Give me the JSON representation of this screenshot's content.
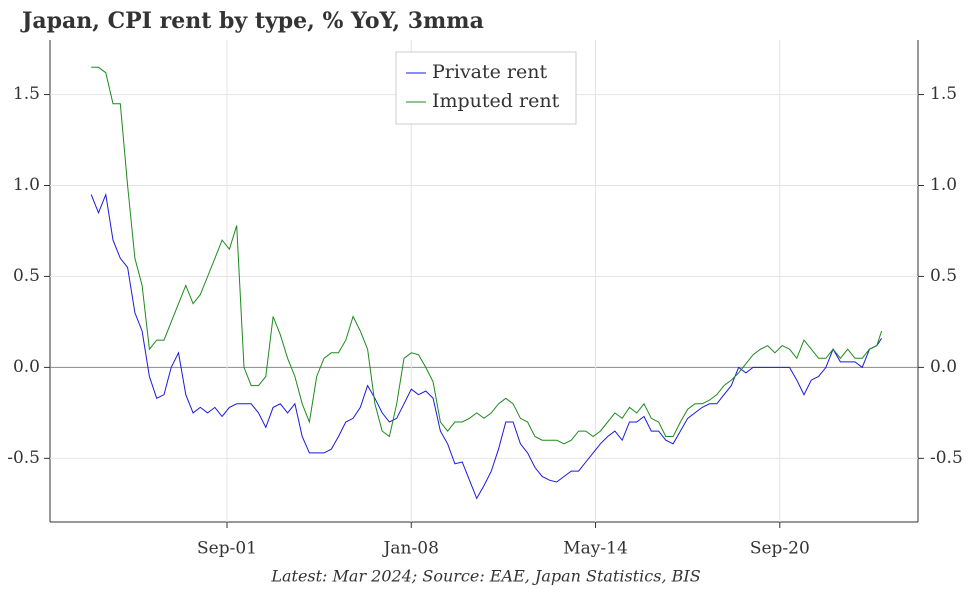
{
  "chart_data": {
    "type": "line",
    "title": "Japan, CPI rent by type, % YoY, 3mma",
    "footnote": "Latest: Mar 2024; Source: EAE, Japan Statistics, BIS",
    "x": [
      "1997-01",
      "1997-04",
      "1997-07",
      "1997-10",
      "1998-01",
      "1998-04",
      "1998-07",
      "1998-10",
      "1999-01",
      "1999-04",
      "1999-07",
      "1999-10",
      "2000-01",
      "2000-04",
      "2000-07",
      "2000-10",
      "2001-01",
      "2001-04",
      "2001-07",
      "2001-10",
      "2002-01",
      "2002-04",
      "2002-07",
      "2002-10",
      "2003-01",
      "2003-04",
      "2003-07",
      "2003-10",
      "2004-01",
      "2004-04",
      "2004-07",
      "2004-10",
      "2005-01",
      "2005-04",
      "2005-07",
      "2005-10",
      "2006-01",
      "2006-04",
      "2006-07",
      "2006-10",
      "2007-01",
      "2007-04",
      "2007-07",
      "2007-10",
      "2008-01",
      "2008-04",
      "2008-07",
      "2008-10",
      "2009-01",
      "2009-04",
      "2009-07",
      "2009-10",
      "2010-01",
      "2010-04",
      "2010-07",
      "2010-10",
      "2011-01",
      "2011-04",
      "2011-07",
      "2011-10",
      "2012-01",
      "2012-04",
      "2012-07",
      "2012-10",
      "2013-01",
      "2013-04",
      "2013-07",
      "2013-10",
      "2014-01",
      "2014-04",
      "2014-07",
      "2014-10",
      "2015-01",
      "2015-04",
      "2015-07",
      "2015-10",
      "2016-01",
      "2016-04",
      "2016-07",
      "2016-10",
      "2017-01",
      "2017-04",
      "2017-07",
      "2017-10",
      "2018-01",
      "2018-04",
      "2018-07",
      "2018-10",
      "2019-01",
      "2019-04",
      "2019-07",
      "2019-10",
      "2020-01",
      "2020-04",
      "2020-07",
      "2020-10",
      "2021-01",
      "2021-04",
      "2021-07",
      "2021-10",
      "2022-01",
      "2022-04",
      "2022-07",
      "2022-10",
      "2023-01",
      "2023-04",
      "2023-07",
      "2023-10",
      "2024-01",
      "2024-03"
    ],
    "series": [
      {
        "name": "Private rent",
        "color": "#1a1adb",
        "values": [
          0.95,
          0.85,
          0.95,
          0.7,
          0.6,
          0.55,
          0.3,
          0.2,
          -0.05,
          -0.17,
          -0.15,
          0.0,
          0.08,
          -0.15,
          -0.25,
          -0.22,
          -0.25,
          -0.22,
          -0.27,
          -0.22,
          -0.2,
          -0.2,
          -0.2,
          -0.25,
          -0.33,
          -0.22,
          -0.2,
          -0.25,
          -0.2,
          -0.38,
          -0.47,
          -0.47,
          -0.47,
          -0.45,
          -0.38,
          -0.3,
          -0.28,
          -0.22,
          -0.1,
          -0.17,
          -0.25,
          -0.3,
          -0.28,
          -0.2,
          -0.12,
          -0.15,
          -0.13,
          -0.17,
          -0.35,
          -0.42,
          -0.53,
          -0.52,
          -0.62,
          -0.72,
          -0.65,
          -0.57,
          -0.45,
          -0.3,
          -0.3,
          -0.42,
          -0.47,
          -0.55,
          -0.6,
          -0.62,
          -0.63,
          -0.6,
          -0.57,
          -0.57,
          -0.52,
          -0.47,
          -0.42,
          -0.38,
          -0.35,
          -0.4,
          -0.3,
          -0.3,
          -0.27,
          -0.35,
          -0.35,
          -0.4,
          -0.42,
          -0.35,
          -0.28,
          -0.25,
          -0.22,
          -0.2,
          -0.2,
          -0.15,
          -0.1,
          0.0,
          -0.03,
          0.0,
          0.0,
          0.0,
          0.0,
          0.0,
          0.0,
          -0.07,
          -0.15,
          -0.07,
          -0.05,
          0.0,
          0.1,
          0.03,
          0.03,
          0.03,
          0.0,
          0.1,
          0.12,
          0.16
        ]
      },
      {
        "name": "Imputed rent",
        "color": "#1e8a1e",
        "values": [
          1.65,
          1.65,
          1.62,
          1.45,
          1.45,
          1.0,
          0.6,
          0.45,
          0.1,
          0.15,
          0.15,
          0.25,
          0.35,
          0.45,
          0.35,
          0.4,
          0.5,
          0.6,
          0.7,
          0.65,
          0.78,
          0.0,
          -0.1,
          -0.1,
          -0.05,
          0.28,
          0.18,
          0.05,
          -0.05,
          -0.2,
          -0.3,
          -0.05,
          0.05,
          0.08,
          0.08,
          0.15,
          0.28,
          0.2,
          0.1,
          -0.2,
          -0.35,
          -0.38,
          -0.2,
          0.05,
          0.08,
          0.07,
          0.0,
          -0.08,
          -0.3,
          -0.35,
          -0.3,
          -0.3,
          -0.28,
          -0.25,
          -0.28,
          -0.25,
          -0.2,
          -0.17,
          -0.2,
          -0.28,
          -0.3,
          -0.38,
          -0.4,
          -0.4,
          -0.4,
          -0.42,
          -0.4,
          -0.35,
          -0.35,
          -0.38,
          -0.35,
          -0.3,
          -0.25,
          -0.28,
          -0.22,
          -0.25,
          -0.2,
          -0.28,
          -0.3,
          -0.38,
          -0.38,
          -0.3,
          -0.23,
          -0.2,
          -0.2,
          -0.18,
          -0.15,
          -0.1,
          -0.07,
          -0.03,
          0.02,
          0.07,
          0.1,
          0.12,
          0.08,
          0.12,
          0.1,
          0.05,
          0.15,
          0.1,
          0.05,
          0.05,
          0.1,
          0.05,
          0.1,
          0.05,
          0.05,
          0.1,
          0.12,
          0.2
        ]
      }
    ],
    "xlim": [
      "1995-08",
      "2025-06"
    ],
    "xticks": [
      {
        "value": "2001-09",
        "label": "Sep-01"
      },
      {
        "value": "2008-01",
        "label": "Jan-08"
      },
      {
        "value": "2014-05",
        "label": "May-14"
      },
      {
        "value": "2020-09",
        "label": "Sep-20"
      }
    ],
    "ylim": [
      -0.85,
      1.8
    ],
    "yticks": [
      {
        "value": 1.5,
        "label": "1.5"
      },
      {
        "value": 1,
        "label": "1.0"
      },
      {
        "value": 0.5,
        "label": "0.5"
      },
      {
        "value": 0,
        "label": "0.0"
      },
      {
        "value": -0.5,
        "label": "-0.5"
      }
    ],
    "grid": true,
    "legend": "top"
  }
}
